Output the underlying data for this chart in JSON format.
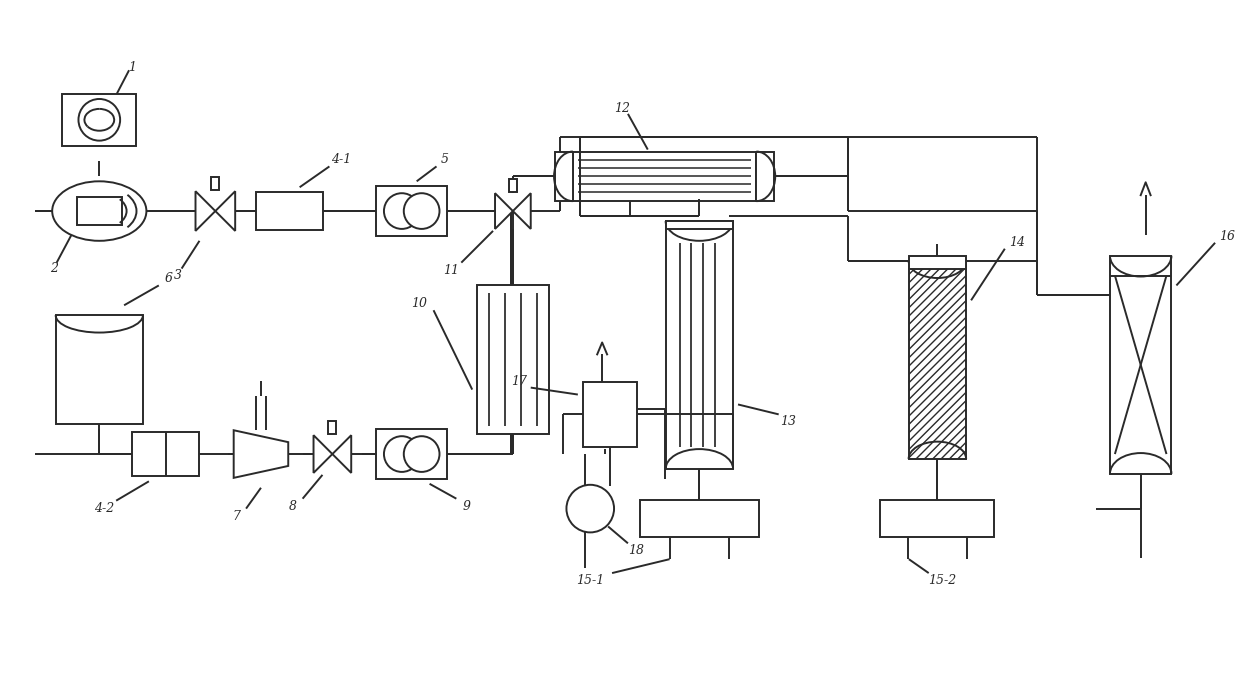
{
  "bg_color": "#ffffff",
  "line_color": "#2a2a2a",
  "lw": 1.4,
  "figsize": [
    12.4,
    6.78
  ],
  "dpi": 100
}
